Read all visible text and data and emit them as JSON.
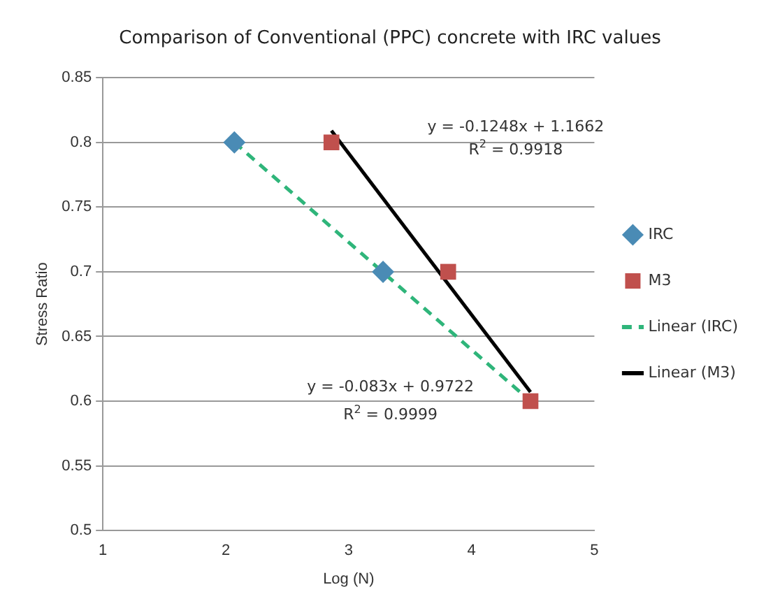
{
  "chart_data": {
    "type": "scatter",
    "title": "Comparison of Conventional (PPC) concrete with IRC values",
    "xlabel": "Log (N)",
    "ylabel": "Stress Ratio",
    "series": [
      {
        "name": "IRC",
        "color": "#4a8bb5",
        "marker": "diamond",
        "x": [
          2.07,
          3.28
        ],
        "values": [
          0.8,
          0.7
        ]
      },
      {
        "name": "M3",
        "color": "#c0504d",
        "marker": "square",
        "x": [
          2.86,
          3.81,
          4.48
        ],
        "values": [
          0.8,
          0.7,
          0.6
        ]
      },
      {
        "name": "Linear (IRC)",
        "type": "line",
        "color": "#2fb57a",
        "line_style": "dashed",
        "marker": "none",
        "x": [
          2.07,
          4.48
        ],
        "values": [
          0.8,
          0.6
        ]
      },
      {
        "name": "Linear (M3)",
        "type": "line",
        "color": "#000000",
        "line_style": "solid",
        "marker": "none",
        "x": [
          2.86,
          4.48
        ],
        "values": [
          0.809,
          0.607
        ]
      }
    ],
    "xlim": [
      1,
      5
    ],
    "xticks": [
      1,
      2,
      3,
      4,
      5
    ],
    "ylim": [
      0.5,
      0.85
    ],
    "yticks": [
      0.5,
      0.55,
      0.6,
      0.65,
      0.7,
      0.75,
      0.8,
      0.85
    ],
    "grid": "y",
    "legend": "right",
    "annotations": [
      "y = -0.1248x + 1.1662",
      "R$^{2}$ = 0.9918",
      "y = -0.083x + 0.9722",
      "R$^{2}$ = 0.9999"
    ]
  }
}
